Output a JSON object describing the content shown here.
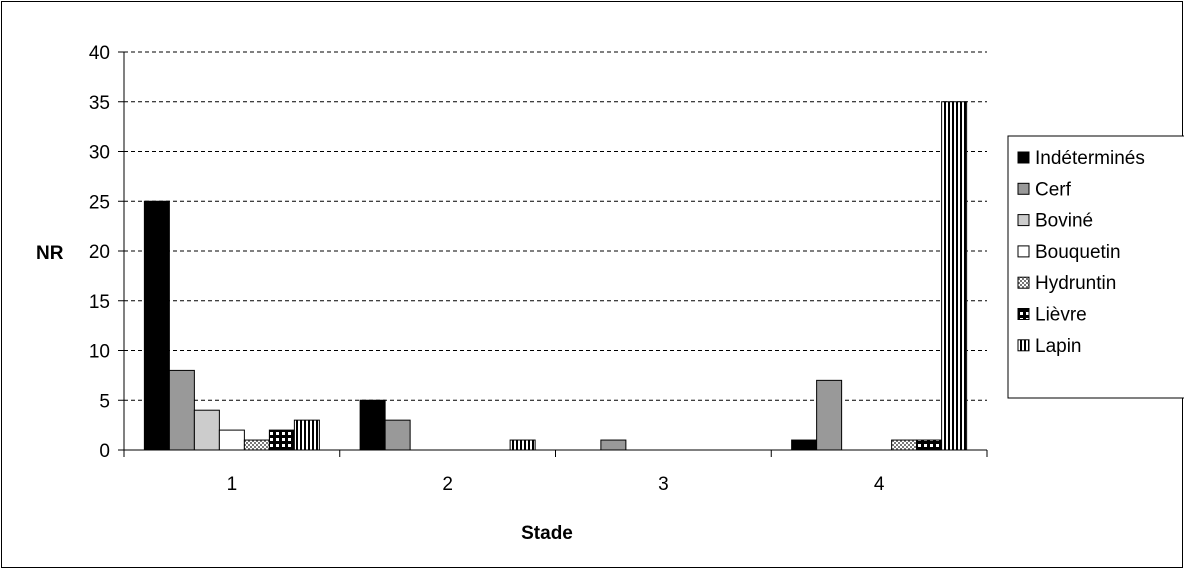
{
  "chart_data": {
    "type": "bar",
    "title": "",
    "xlabel": "Stade",
    "ylabel": "NR",
    "categories": [
      "1",
      "2",
      "3",
      "4"
    ],
    "ylim": [
      0,
      40
    ],
    "yticks": [
      0,
      5,
      10,
      15,
      20,
      25,
      30,
      35,
      40
    ],
    "grid": true,
    "legend_position": "right",
    "series": [
      {
        "name": "Indéterminés",
        "values": [
          25,
          5,
          0,
          1
        ],
        "color": "#000000",
        "pattern": "solid"
      },
      {
        "name": "Cerf",
        "values": [
          8,
          3,
          1,
          7
        ],
        "color": "#999999",
        "pattern": "solid"
      },
      {
        "name": "Boviné",
        "values": [
          4,
          0,
          0,
          0
        ],
        "color": "#cccccc",
        "pattern": "solid"
      },
      {
        "name": "Bouquetin",
        "values": [
          2,
          0,
          0,
          0
        ],
        "color": "#ffffff",
        "pattern": "solid"
      },
      {
        "name": "Hydruntin",
        "values": [
          1,
          0,
          0,
          1
        ],
        "color": "#888888",
        "pattern": "fine-checker"
      },
      {
        "name": "Lièvre",
        "values": [
          2,
          0,
          0,
          1
        ],
        "color": "#000000",
        "pattern": "coarse-checker"
      },
      {
        "name": "Lapin",
        "values": [
          3,
          1,
          0,
          35
        ],
        "color": "#000000",
        "pattern": "vertical-stripes"
      }
    ]
  }
}
